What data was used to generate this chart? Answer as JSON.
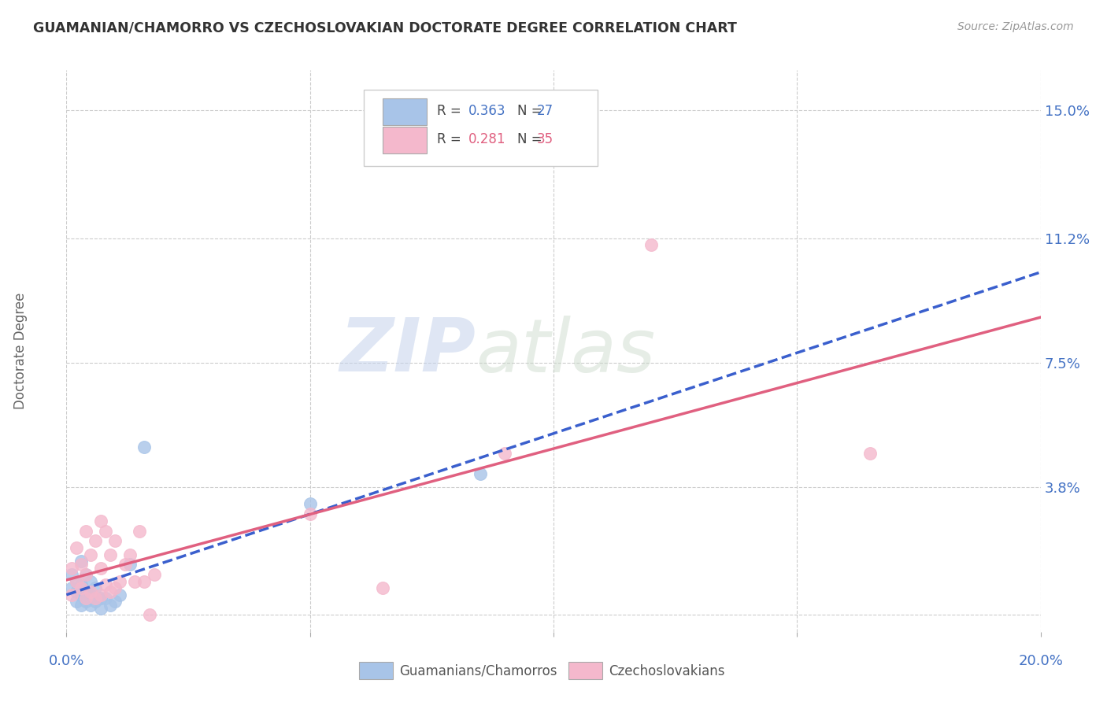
{
  "title": "GUAMANIAN/CHAMORRO VS CZECHOSLOVAKIAN DOCTORATE DEGREE CORRELATION CHART",
  "source": "Source: ZipAtlas.com",
  "ylabel": "Doctorate Degree",
  "yticks": [
    0.0,
    0.038,
    0.075,
    0.112,
    0.15
  ],
  "ytick_labels": [
    "",
    "3.8%",
    "7.5%",
    "11.2%",
    "15.0%"
  ],
  "xlim": [
    0.0,
    0.2
  ],
  "ylim": [
    -0.005,
    0.162
  ],
  "legend_r1": "0.363",
  "legend_n1": "27",
  "legend_r2": "0.281",
  "legend_n2": "35",
  "blue_scatter_color": "#A8C4E8",
  "pink_scatter_color": "#F4B8CC",
  "blue_line_color": "#3A5FCD",
  "pink_line_color": "#E06080",
  "text_color": "#4472C4",
  "watermark_color": "#C8D4EE",
  "background_color": "#FFFFFF",
  "grid_color": "#CCCCCC",
  "guamanian_x": [
    0.001,
    0.001,
    0.002,
    0.002,
    0.002,
    0.003,
    0.003,
    0.003,
    0.003,
    0.004,
    0.004,
    0.004,
    0.005,
    0.005,
    0.005,
    0.006,
    0.006,
    0.007,
    0.007,
    0.008,
    0.009,
    0.01,
    0.011,
    0.013,
    0.016,
    0.05,
    0.085
  ],
  "guamanian_y": [
    0.008,
    0.012,
    0.004,
    0.007,
    0.01,
    0.003,
    0.006,
    0.009,
    0.016,
    0.004,
    0.007,
    0.012,
    0.003,
    0.006,
    0.01,
    0.004,
    0.008,
    0.002,
    0.005,
    0.005,
    0.003,
    0.004,
    0.006,
    0.015,
    0.05,
    0.033,
    0.042
  ],
  "czech_x": [
    0.001,
    0.001,
    0.002,
    0.002,
    0.003,
    0.003,
    0.004,
    0.004,
    0.004,
    0.005,
    0.005,
    0.006,
    0.006,
    0.007,
    0.007,
    0.007,
    0.008,
    0.008,
    0.009,
    0.009,
    0.01,
    0.01,
    0.011,
    0.012,
    0.013,
    0.014,
    0.015,
    0.016,
    0.017,
    0.018,
    0.05,
    0.065,
    0.09,
    0.12,
    0.165
  ],
  "czech_y": [
    0.006,
    0.014,
    0.01,
    0.02,
    0.008,
    0.015,
    0.005,
    0.012,
    0.025,
    0.007,
    0.018,
    0.005,
    0.022,
    0.006,
    0.014,
    0.028,
    0.009,
    0.025,
    0.007,
    0.018,
    0.008,
    0.022,
    0.01,
    0.015,
    0.018,
    0.01,
    0.025,
    0.01,
    0.0,
    0.012,
    0.03,
    0.008,
    0.048,
    0.11,
    0.048
  ]
}
